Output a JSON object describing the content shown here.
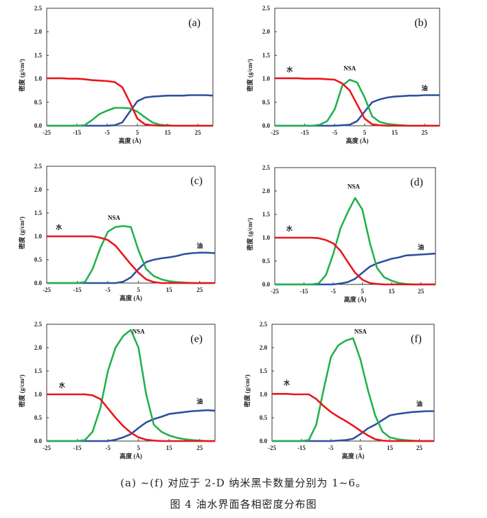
{
  "colors": {
    "water": "#e8151b",
    "nsa": "#22b14c",
    "oil": "#2e4fa0"
  },
  "caption": {
    "line1": "(a) ~(f) 对应于 2-D 纳米黑卡数量分别为 1~6。",
    "line2": "图 4   油水界面各相密度分布图"
  },
  "chart_data": [
    {
      "type": "line",
      "panel": "(a)",
      "xlabel": "高度 (Å)",
      "ylabel": "密度 (g/cm³)",
      "xlim": [
        -25,
        30
      ],
      "ylim": [
        0,
        2.5
      ],
      "xticks": [
        -25,
        -15,
        -5,
        5,
        15,
        25
      ],
      "yticks": [
        "0.0",
        "0.5",
        "1.0",
        "1.5",
        "2.0",
        "2.5"
      ],
      "x": [
        -25,
        -22.5,
        -20,
        -17.5,
        -15,
        -12.5,
        -10,
        -7.5,
        -5,
        -2.5,
        0,
        2.5,
        5,
        7.5,
        10,
        12.5,
        15,
        17.5,
        20,
        22.5,
        25,
        27.5,
        30
      ],
      "series": [
        {
          "name": "水",
          "key": "water",
          "values": [
            1.01,
            1.01,
            1.01,
            1.0,
            1.0,
            0.99,
            0.97,
            0.96,
            0.95,
            0.93,
            0.82,
            0.5,
            0.15,
            0.03,
            0.01,
            0,
            0,
            0,
            0,
            0,
            0,
            0,
            0
          ]
        },
        {
          "name": "NSA",
          "key": "nsa",
          "values": [
            0,
            0,
            0,
            0,
            0,
            0.01,
            0.12,
            0.25,
            0.32,
            0.38,
            0.38,
            0.37,
            0.3,
            0.18,
            0.07,
            0.02,
            0.01,
            0,
            0,
            0,
            0,
            0,
            0
          ]
        },
        {
          "name": "油",
          "key": "oil",
          "values": [
            0,
            0,
            0,
            0,
            0,
            0,
            0,
            0,
            0,
            0.01,
            0.07,
            0.3,
            0.52,
            0.6,
            0.62,
            0.63,
            0.64,
            0.64,
            0.64,
            0.65,
            0.65,
            0.65,
            0.64
          ]
        }
      ],
      "annotations": []
    },
    {
      "type": "line",
      "panel": "(b)",
      "xlabel": "高度 (Å)",
      "ylabel": "密度 (g/cm³)",
      "xlim": [
        -25,
        30
      ],
      "ylim": [
        0,
        2.5
      ],
      "xticks": [
        -25,
        -15,
        -5,
        5,
        15,
        25
      ],
      "yticks": [
        "0.0",
        "0.5",
        "1.0",
        "1.5",
        "2.0",
        "2.5"
      ],
      "x": [
        -25,
        -22.5,
        -20,
        -17.5,
        -15,
        -12.5,
        -10,
        -7.5,
        -5,
        -2.5,
        0,
        2.5,
        5,
        7.5,
        10,
        12.5,
        15,
        17.5,
        20,
        22.5,
        25,
        27.5,
        30
      ],
      "series": [
        {
          "name": "水",
          "key": "water",
          "values": [
            1.01,
            1.01,
            1.01,
            1.01,
            1.0,
            1.0,
            1.0,
            0.99,
            0.98,
            0.9,
            0.75,
            0.45,
            0.15,
            0.03,
            0.01,
            0,
            0,
            0,
            0,
            0,
            0,
            0,
            0
          ]
        },
        {
          "name": "NSA",
          "key": "nsa",
          "values": [
            0,
            0,
            0,
            0,
            0,
            0,
            0.02,
            0.1,
            0.35,
            0.85,
            0.98,
            0.92,
            0.6,
            0.2,
            0.08,
            0.04,
            0.02,
            0.01,
            0,
            0,
            0,
            0,
            0
          ]
        },
        {
          "name": "油",
          "key": "oil",
          "values": [
            0,
            0,
            0,
            0,
            0,
            0,
            0,
            0,
            0,
            0.01,
            0.02,
            0.1,
            0.3,
            0.5,
            0.56,
            0.6,
            0.62,
            0.63,
            0.64,
            0.64,
            0.65,
            0.65,
            0.65
          ]
        }
      ],
      "annotations": [
        {
          "text": "水",
          "x": -20,
          "y": 1.15
        },
        {
          "text": "NSA",
          "x": 0,
          "y": 1.18
        },
        {
          "text": "油",
          "x": 25,
          "y": 0.75
        }
      ]
    },
    {
      "type": "line",
      "panel": "(c)",
      "xlabel": "高度 (Å)",
      "ylabel": "密度 (g/cm³)",
      "xlim": [
        -25,
        30
      ],
      "ylim": [
        0,
        2.5
      ],
      "xticks": [
        -25,
        -15,
        -5,
        5,
        15,
        25
      ],
      "yticks": [
        "0.0",
        "0.5",
        "1.0",
        "1.5",
        "2.0",
        "2.5"
      ],
      "x": [
        -25,
        -22.5,
        -20,
        -17.5,
        -15,
        -12.5,
        -10,
        -7.5,
        -5,
        -2.5,
        0,
        2.5,
        5,
        7.5,
        10,
        12.5,
        15,
        17.5,
        20,
        22.5,
        25,
        27.5,
        30
      ],
      "series": [
        {
          "name": "水",
          "key": "water",
          "values": [
            1.0,
            1.0,
            1.0,
            1.0,
            1.0,
            1.0,
            1.0,
            0.97,
            0.92,
            0.8,
            0.6,
            0.4,
            0.22,
            0.08,
            0.02,
            0,
            0,
            0,
            0,
            0,
            0,
            0,
            0
          ]
        },
        {
          "name": "NSA",
          "key": "nsa",
          "values": [
            0,
            0,
            0,
            0,
            0,
            0.02,
            0.3,
            0.75,
            1.1,
            1.2,
            1.22,
            1.2,
            0.7,
            0.3,
            0.15,
            0.08,
            0.04,
            0.02,
            0.01,
            0,
            0,
            0,
            0
          ]
        },
        {
          "name": "油",
          "key": "oil",
          "values": [
            0,
            0,
            0,
            0,
            0,
            0,
            0,
            0,
            0,
            0,
            0.03,
            0.12,
            0.3,
            0.45,
            0.5,
            0.53,
            0.55,
            0.58,
            0.62,
            0.64,
            0.65,
            0.65,
            0.64
          ]
        }
      ],
      "annotations": [
        {
          "text": "水",
          "x": -21,
          "y": 1.15
        },
        {
          "text": "NSA",
          "x": -3,
          "y": 1.35
        },
        {
          "text": "油",
          "x": 25,
          "y": 0.75
        }
      ]
    },
    {
      "type": "line",
      "panel": "(d)",
      "xlabel": "高度 (Å)",
      "ylabel": "密度 (g/cm³)",
      "xlim": [
        -25,
        30
      ],
      "ylim": [
        0,
        2.5
      ],
      "xticks": [
        -25,
        -15,
        -5,
        5,
        15,
        25
      ],
      "yticks": [
        "0.0",
        "0.5",
        "1.0",
        "1.5",
        "2.0",
        "2.5"
      ],
      "x": [
        -25,
        -22.5,
        -20,
        -17.5,
        -15,
        -12.5,
        -10,
        -7.5,
        -5,
        -2.5,
        0,
        2.5,
        5,
        7.5,
        10,
        12.5,
        15,
        17.5,
        20,
        22.5,
        25,
        27.5,
        30
      ],
      "series": [
        {
          "name": "水",
          "key": "water",
          "values": [
            1.0,
            1.0,
            1.0,
            1.0,
            1.0,
            1.0,
            0.99,
            0.95,
            0.88,
            0.72,
            0.48,
            0.25,
            0.1,
            0.03,
            0.01,
            0,
            0,
            0,
            0,
            0,
            0,
            0,
            0
          ]
        },
        {
          "name": "NSA",
          "key": "nsa",
          "values": [
            0,
            0,
            0,
            0,
            0,
            0,
            0.02,
            0.2,
            0.65,
            1.2,
            1.55,
            1.85,
            1.6,
            0.9,
            0.35,
            0.15,
            0.08,
            0.03,
            0.01,
            0,
            0,
            0,
            0
          ]
        },
        {
          "name": "油",
          "key": "oil",
          "values": [
            0,
            0,
            0,
            0,
            0,
            0,
            0,
            0,
            0,
            0.02,
            0.05,
            0.12,
            0.25,
            0.38,
            0.45,
            0.5,
            0.55,
            0.58,
            0.62,
            0.63,
            0.64,
            0.65,
            0.66
          ]
        }
      ],
      "annotations": [
        {
          "text": "水",
          "x": -20,
          "y": 1.15
        },
        {
          "text": "NSA",
          "x": 2,
          "y": 2.05
        },
        {
          "text": "油",
          "x": 25,
          "y": 0.75
        }
      ]
    },
    {
      "type": "line",
      "panel": "(e)",
      "xlabel": "高度 (Å)",
      "ylabel": "密度 (g/cm³)",
      "xlim": [
        -25,
        30
      ],
      "ylim": [
        0,
        2.5
      ],
      "xticks": [
        -25,
        -15,
        -5,
        5,
        15,
        25
      ],
      "yticks": [
        "0.0",
        "0.5",
        "1.0",
        "1.5",
        "2.0",
        "2.5"
      ],
      "x": [
        -25,
        -22.5,
        -20,
        -17.5,
        -15,
        -12.5,
        -10,
        -7.5,
        -5,
        -2.5,
        0,
        2.5,
        5,
        7.5,
        10,
        12.5,
        15,
        17.5,
        20,
        22.5,
        25,
        27.5,
        30
      ],
      "series": [
        {
          "name": "水",
          "key": "water",
          "values": [
            1.0,
            1.0,
            1.0,
            1.0,
            1.0,
            1.0,
            0.98,
            0.9,
            0.7,
            0.5,
            0.32,
            0.18,
            0.08,
            0.03,
            0.01,
            0,
            0,
            0,
            0,
            0,
            0,
            0,
            0
          ]
        },
        {
          "name": "NSA",
          "key": "nsa",
          "values": [
            0,
            0,
            0,
            0,
            0,
            0.02,
            0.2,
            0.7,
            1.5,
            2.0,
            2.25,
            2.38,
            2.0,
            1.0,
            0.35,
            0.2,
            0.12,
            0.07,
            0.04,
            0.02,
            0.01,
            0,
            0
          ]
        },
        {
          "name": "油",
          "key": "oil",
          "values": [
            0,
            0,
            0,
            0,
            0,
            0,
            0,
            0,
            0,
            0.03,
            0.08,
            0.15,
            0.28,
            0.4,
            0.47,
            0.52,
            0.58,
            0.6,
            0.62,
            0.64,
            0.65,
            0.66,
            0.65
          ]
        }
      ],
      "annotations": [
        {
          "text": "水",
          "x": -20,
          "y": 1.15
        },
        {
          "text": "NSA",
          "x": 5,
          "y": 2.3
        },
        {
          "text": "油",
          "x": 25,
          "y": 0.8
        }
      ]
    },
    {
      "type": "line",
      "panel": "(f)",
      "xlabel": "高度 (Å)",
      "ylabel": "密度 (g/cm³)",
      "xlim": [
        -25,
        30
      ],
      "ylim": [
        0,
        2.5
      ],
      "xticks": [
        -25,
        -15,
        -5,
        5,
        15,
        25
      ],
      "yticks": [
        "0.0",
        "0.5",
        "1.0",
        "1.5",
        "2.0",
        "2.5"
      ],
      "x": [
        -25,
        -22.5,
        -20,
        -17.5,
        -15,
        -12.5,
        -10,
        -7.5,
        -5,
        -2.5,
        0,
        2.5,
        5,
        7.5,
        10,
        12.5,
        15,
        17.5,
        20,
        22.5,
        25,
        27.5,
        30
      ],
      "series": [
        {
          "name": "水",
          "key": "water",
          "values": [
            1.01,
            1.01,
            1.01,
            1.0,
            1.0,
            1.0,
            0.9,
            0.75,
            0.62,
            0.52,
            0.43,
            0.33,
            0.22,
            0.12,
            0.04,
            0.01,
            0,
            0,
            0,
            0,
            0,
            0,
            0
          ]
        },
        {
          "name": "NSA",
          "key": "nsa",
          "values": [
            0,
            0,
            0,
            0,
            0,
            0.02,
            0.35,
            1.1,
            1.8,
            2.05,
            2.15,
            2.2,
            1.75,
            1.1,
            0.55,
            0.2,
            0.08,
            0.04,
            0.02,
            0.01,
            0,
            0,
            0
          ]
        },
        {
          "name": "油",
          "key": "oil",
          "values": [
            0,
            0,
            0,
            0,
            0,
            0,
            0,
            0,
            0,
            0.01,
            0.02,
            0.05,
            0.15,
            0.27,
            0.35,
            0.45,
            0.55,
            0.58,
            0.6,
            0.62,
            0.63,
            0.64,
            0.64
          ]
        }
      ],
      "annotations": [
        {
          "text": "水",
          "x": -20,
          "y": 1.2
        },
        {
          "text": "NSA",
          "x": 5,
          "y": 2.3
        },
        {
          "text": "油",
          "x": 25,
          "y": 0.75
        }
      ]
    }
  ]
}
